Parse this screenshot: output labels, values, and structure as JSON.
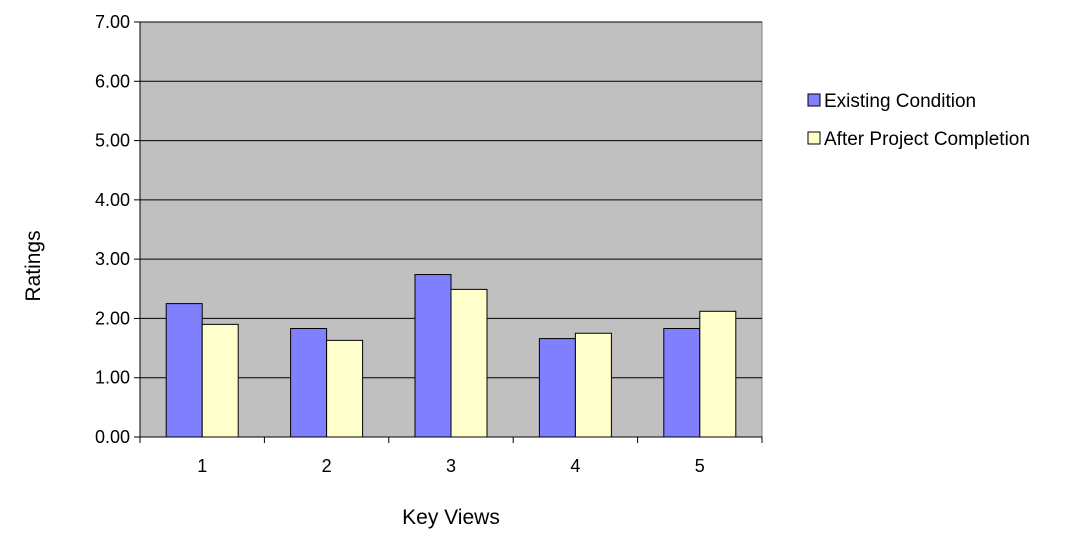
{
  "chart_data": {
    "type": "bar",
    "categories": [
      "1",
      "2",
      "3",
      "4",
      "5"
    ],
    "series": [
      {
        "name": "Existing Condition",
        "values": [
          2.25,
          1.83,
          2.74,
          1.66,
          1.83
        ],
        "color": "#8080ff"
      },
      {
        "name": "After Project Completion",
        "values": [
          1.9,
          1.63,
          2.49,
          1.75,
          2.12
        ],
        "color": "#ffffcc"
      }
    ],
    "xlabel": "Key Views",
    "ylabel": "Ratings",
    "ylim": [
      0,
      7
    ],
    "yticks": [
      "0.00",
      "1.00",
      "2.00",
      "3.00",
      "4.00",
      "5.00",
      "6.00",
      "7.00"
    ],
    "grid": "horizontal",
    "legend_position": "right",
    "plot_background": "#c0c0c0"
  }
}
